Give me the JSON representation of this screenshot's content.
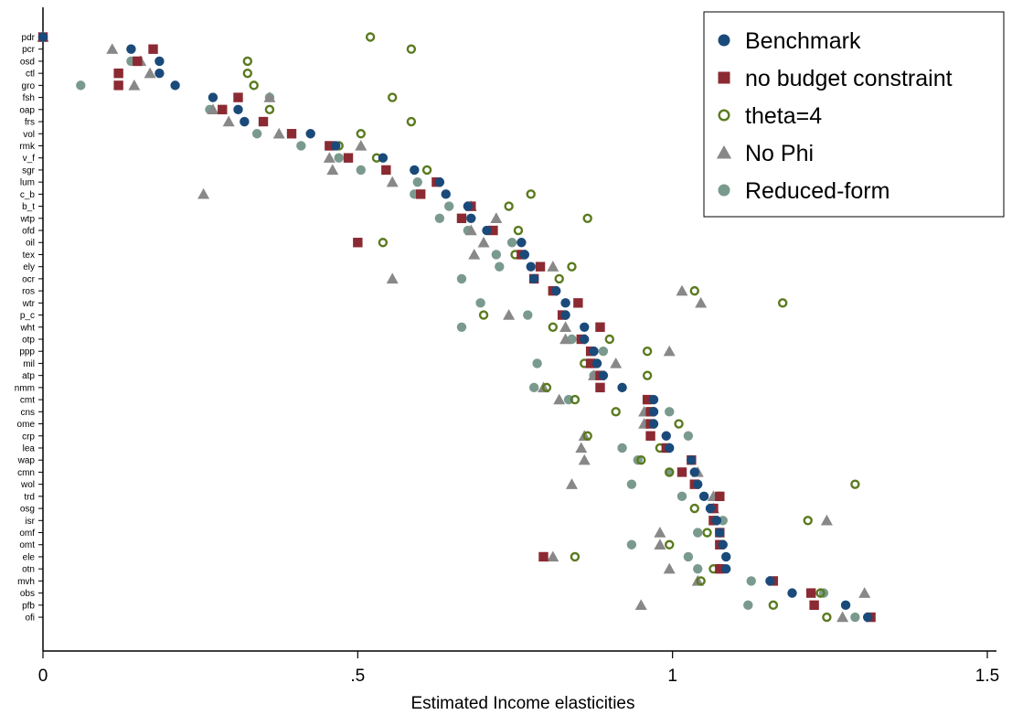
{
  "chart_data": {
    "type": "scatter",
    "title": "",
    "xlabel": "Estimated Income elasticities",
    "ylabel": "",
    "xlim": [
      0,
      1.5
    ],
    "xticks": [
      0,
      0.5,
      1,
      1.5
    ],
    "xtick_labels": [
      "0",
      ".5",
      "1",
      "1.5"
    ],
    "grid": false,
    "legend_position": "top-right",
    "categories": [
      "pdr",
      "pcr",
      "osd",
      "ctl",
      "gro",
      "fsh",
      "oap",
      "frs",
      "vol",
      "rmk",
      "v_f",
      "sgr",
      "lum",
      "c_b",
      "b_t",
      "wtp",
      "ofd",
      "oil",
      "tex",
      "ely",
      "ocr",
      "ros",
      "wtr",
      "p_c",
      "wht",
      "otp",
      "ppp",
      "mil",
      "atp",
      "nmm",
      "cmt",
      "cns",
      "ome",
      "crp",
      "lea",
      "wap",
      "cmn",
      "wol",
      "trd",
      "osg",
      "isr",
      "omf",
      "omt",
      "ele",
      "otn",
      "mvh",
      "obs",
      "pfb",
      "ofi"
    ],
    "series": [
      {
        "name": "Benchmark",
        "color": "#1a4a7a",
        "marker": "circle",
        "values": [
          0.0,
          0.14,
          0.185,
          0.185,
          0.21,
          0.27,
          0.31,
          0.32,
          0.425,
          0.465,
          0.54,
          0.59,
          0.63,
          0.64,
          0.675,
          0.68,
          0.705,
          0.76,
          0.765,
          0.775,
          0.78,
          0.815,
          0.83,
          0.83,
          0.86,
          0.86,
          0.875,
          0.88,
          0.89,
          0.92,
          0.97,
          0.97,
          0.97,
          0.99,
          0.995,
          1.03,
          1.035,
          1.04,
          1.05,
          1.06,
          1.07,
          1.075,
          1.08,
          1.085,
          1.085,
          1.155,
          1.19,
          1.275,
          1.31
        ]
      },
      {
        "name": "no budget constraint",
        "color": "#8b2a32",
        "marker": "square",
        "values": [
          0.0,
          0.175,
          0.15,
          0.12,
          0.12,
          0.31,
          0.285,
          0.35,
          0.395,
          0.455,
          0.485,
          0.545,
          0.625,
          0.6,
          0.68,
          0.665,
          0.715,
          0.5,
          0.76,
          0.79,
          0.78,
          0.81,
          0.85,
          0.825,
          0.885,
          0.855,
          0.87,
          0.87,
          0.885,
          0.885,
          0.96,
          0.965,
          0.965,
          0.965,
          0.99,
          1.03,
          1.015,
          1.035,
          1.075,
          1.065,
          1.065,
          1.075,
          1.075,
          0.795,
          1.075,
          1.16,
          1.22,
          1.225,
          1.315
        ]
      },
      {
        "name": "theta=4",
        "color": "#5a7a1e",
        "marker": "hollow-circle",
        "values": [
          0.52,
          0.585,
          0.325,
          0.325,
          0.335,
          0.555,
          0.36,
          0.585,
          0.505,
          0.47,
          0.53,
          0.61,
          0.63,
          0.775,
          0.74,
          0.865,
          0.755,
          0.54,
          0.75,
          0.84,
          0.82,
          1.035,
          1.175,
          0.7,
          0.81,
          0.9,
          0.96,
          0.86,
          0.96,
          0.8,
          0.845,
          0.91,
          1.01,
          0.865,
          0.98,
          0.95,
          0.995,
          1.29,
          1.075,
          1.035,
          1.215,
          1.055,
          0.995,
          0.845,
          1.065,
          1.045,
          1.235,
          1.16,
          1.245
        ]
      },
      {
        "name": "No Phi",
        "color": "#888888",
        "marker": "triangle",
        "values": [
          0.0,
          0.11,
          0.155,
          0.17,
          0.145,
          0.36,
          0.27,
          0.295,
          0.375,
          0.505,
          0.455,
          0.46,
          0.555,
          0.255,
          0.68,
          0.72,
          0.68,
          0.7,
          0.685,
          0.81,
          0.555,
          1.015,
          1.045,
          0.74,
          0.83,
          0.83,
          0.995,
          0.91,
          0.875,
          0.795,
          0.82,
          0.955,
          0.955,
          0.86,
          0.855,
          0.86,
          1.04,
          0.84,
          1.065,
          1.065,
          1.245,
          0.98,
          0.98,
          0.81,
          0.995,
          1.04,
          1.305,
          0.95,
          1.27
        ]
      },
      {
        "name": "Reduced-form",
        "color": "#7a9a8e",
        "marker": "circle",
        "values": [
          0.0,
          0.14,
          0.14,
          0.12,
          0.06,
          0.36,
          0.265,
          0.32,
          0.34,
          0.41,
          0.47,
          0.505,
          0.595,
          0.59,
          0.645,
          0.63,
          0.675,
          0.745,
          0.72,
          0.725,
          0.665,
          0.81,
          0.695,
          0.77,
          0.665,
          0.84,
          0.89,
          0.785,
          0.875,
          0.78,
          0.835,
          0.995,
          0.96,
          1.025,
          0.92,
          0.945,
          0.995,
          0.935,
          1.015,
          1.065,
          1.08,
          1.04,
          0.935,
          1.025,
          1.04,
          1.125,
          1.24,
          1.12,
          1.29
        ]
      }
    ]
  }
}
